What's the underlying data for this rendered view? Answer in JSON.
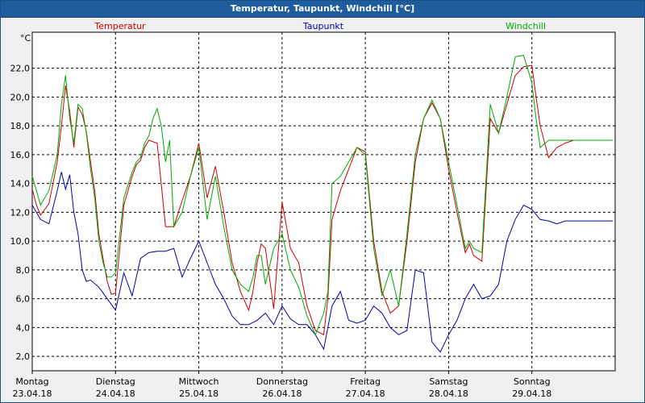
{
  "window": {
    "title": "Temperatur, Taupunkt, Windchill [°C]"
  },
  "colors": {
    "temperatur": "#cc0000",
    "taupunkt": "#0000aa",
    "windchill": "#00aa00",
    "background": "#ffffff"
  },
  "chart_data": {
    "type": "line",
    "title": "Temperatur, Taupunkt, Windchill [°C]",
    "ylabel": "°C",
    "ylim": [
      1.0,
      24.5
    ],
    "yticks": [
      "2,0",
      "4,0",
      "6,0",
      "8,0",
      "10,0",
      "12,0",
      "14,0",
      "16,0",
      "18,0",
      "20,0",
      "22,0"
    ],
    "x_days": [
      {
        "day": "Montag",
        "date": "23.04.18"
      },
      {
        "day": "Dienstag",
        "date": "24.04.18"
      },
      {
        "day": "Mittwoch",
        "date": "25.04.18"
      },
      {
        "day": "Donnerstag",
        "date": "26.04.18"
      },
      {
        "day": "Freitag",
        "date": "27.04.18"
      },
      {
        "day": "Samstag",
        "date": "28.04.18"
      },
      {
        "day": "Sonntag",
        "date": "29.04.18"
      }
    ],
    "grid": true,
    "legend": "top",
    "series": [
      {
        "name": "Temperatur",
        "x": [
          0,
          0.05,
          0.1,
          0.2,
          0.3,
          0.35,
          0.4,
          0.45,
          0.5,
          0.55,
          0.6,
          0.65,
          0.7,
          0.75,
          0.8,
          0.85,
          0.9,
          0.95,
          1.0,
          1.1,
          1.2,
          1.25,
          1.3,
          1.35,
          1.4,
          1.5,
          1.6,
          1.7,
          1.8,
          1.9,
          2.0,
          2.1,
          2.2,
          2.3,
          2.4,
          2.5,
          2.6,
          2.65,
          2.7,
          2.75,
          2.8,
          2.9,
          3.0,
          3.1,
          3.2,
          3.3,
          3.4,
          3.5,
          3.55,
          3.6,
          3.7,
          3.8,
          3.9,
          4.0,
          4.1,
          4.2,
          4.3,
          4.4,
          4.5,
          4.6,
          4.7,
          4.8,
          4.9,
          5.0,
          5.1,
          5.2,
          5.25,
          5.3,
          5.4,
          5.5,
          5.6,
          5.7,
          5.8,
          5.9,
          6.0,
          6.05,
          6.1,
          6.2,
          6.3,
          6.4,
          6.5,
          6.6,
          6.7,
          6.8,
          6.9,
          6.97
        ],
        "y": [
          13.6,
          12.5,
          11.8,
          12.6,
          15.5,
          18.0,
          20.8,
          19.0,
          16.5,
          19.3,
          18.8,
          17.6,
          15.5,
          13.5,
          10.5,
          8.8,
          7.2,
          6.3,
          6.4,
          12.5,
          14.5,
          15.3,
          15.6,
          16.5,
          17.0,
          16.8,
          11.0,
          11.0,
          12.8,
          14.5,
          16.8,
          13.0,
          15.2,
          12.0,
          8.5,
          6.5,
          5.2,
          6.5,
          8.5,
          9.8,
          9.5,
          5.3,
          12.7,
          9.5,
          8.5,
          5.5,
          3.8,
          3.5,
          6.0,
          11.5,
          13.5,
          15.0,
          16.5,
          16.2,
          10.0,
          6.5,
          5.0,
          5.5,
          10.0,
          15.5,
          18.5,
          19.6,
          18.5,
          15.0,
          12.0,
          9.2,
          9.8,
          9.0,
          8.6,
          18.5,
          17.5,
          19.5,
          21.5,
          22.1,
          22.2,
          20.0,
          18.0,
          15.8,
          16.5,
          16.8,
          17.0,
          17.0,
          17.0,
          17.0,
          17.0,
          17.0
        ]
      },
      {
        "name": "Taupunkt",
        "x": [
          0,
          0.1,
          0.2,
          0.3,
          0.35,
          0.4,
          0.45,
          0.5,
          0.55,
          0.6,
          0.65,
          0.7,
          0.8,
          0.9,
          1.0,
          1.1,
          1.2,
          1.3,
          1.4,
          1.5,
          1.6,
          1.7,
          1.8,
          1.9,
          2.0,
          2.1,
          2.2,
          2.3,
          2.4,
          2.5,
          2.6,
          2.7,
          2.8,
          2.9,
          3.0,
          3.1,
          3.2,
          3.3,
          3.4,
          3.5,
          3.6,
          3.7,
          3.8,
          3.9,
          4.0,
          4.1,
          4.2,
          4.3,
          4.4,
          4.5,
          4.6,
          4.7,
          4.8,
          4.9,
          5.0,
          5.1,
          5.2,
          5.3,
          5.4,
          5.5,
          5.6,
          5.7,
          5.8,
          5.9,
          6.0,
          6.1,
          6.2,
          6.3,
          6.4,
          6.5,
          6.6,
          6.7,
          6.8,
          6.9,
          6.97
        ],
        "y": [
          12.5,
          11.5,
          11.2,
          13.5,
          14.8,
          13.6,
          14.6,
          12.0,
          10.5,
          8.0,
          7.2,
          7.3,
          6.8,
          6.0,
          5.2,
          7.8,
          6.2,
          8.8,
          9.2,
          9.3,
          9.3,
          9.5,
          7.5,
          8.8,
          10.0,
          8.5,
          7.0,
          6.0,
          4.8,
          4.2,
          4.2,
          4.5,
          5.0,
          4.2,
          5.5,
          4.6,
          4.2,
          4.2,
          3.5,
          2.5,
          5.5,
          6.5,
          4.5,
          4.3,
          4.5,
          5.5,
          5.0,
          4.0,
          3.5,
          3.8,
          8.0,
          7.8,
          3.0,
          2.3,
          3.5,
          4.5,
          6.0,
          7.0,
          6.0,
          6.2,
          7.0,
          10.0,
          11.5,
          12.5,
          12.2,
          11.5,
          11.4,
          11.2,
          11.4,
          11.4,
          11.4,
          11.4,
          11.4,
          11.4,
          11.4
        ]
      },
      {
        "name": "Windchill",
        "x": [
          0,
          0.05,
          0.1,
          0.2,
          0.3,
          0.35,
          0.4,
          0.45,
          0.5,
          0.55,
          0.6,
          0.65,
          0.7,
          0.75,
          0.8,
          0.85,
          0.9,
          0.95,
          1.0,
          1.1,
          1.2,
          1.25,
          1.3,
          1.35,
          1.4,
          1.45,
          1.5,
          1.55,
          1.6,
          1.65,
          1.7,
          1.8,
          1.9,
          2.0,
          2.1,
          2.2,
          2.3,
          2.4,
          2.5,
          2.6,
          2.65,
          2.7,
          2.75,
          2.8,
          2.9,
          3.0,
          3.1,
          3.2,
          3.3,
          3.4,
          3.5,
          3.55,
          3.6,
          3.7,
          3.8,
          3.9,
          4.0,
          4.1,
          4.2,
          4.3,
          4.4,
          4.5,
          4.6,
          4.7,
          4.8,
          4.9,
          5.0,
          5.1,
          5.2,
          5.25,
          5.3,
          5.4,
          5.5,
          5.6,
          5.7,
          5.8,
          5.9,
          6.0,
          6.05,
          6.1,
          6.2,
          6.3,
          6.4,
          6.5,
          6.6,
          6.7,
          6.8,
          6.9,
          6.97
        ],
        "y": [
          14.5,
          13.5,
          12.5,
          13.5,
          16.0,
          19.5,
          21.5,
          18.5,
          16.8,
          19.5,
          19.2,
          17.5,
          15.0,
          13.0,
          10.0,
          8.5,
          7.5,
          7.5,
          7.8,
          13.0,
          14.8,
          15.5,
          15.8,
          16.8,
          17.3,
          18.5,
          19.2,
          18.0,
          15.5,
          17.0,
          11.0,
          12.0,
          14.5,
          16.5,
          11.5,
          14.5,
          11.0,
          8.0,
          7.0,
          6.5,
          7.5,
          9.0,
          9.0,
          7.0,
          9.5,
          10.5,
          8.0,
          6.8,
          4.8,
          3.5,
          5.0,
          6.5,
          14.0,
          14.5,
          15.5,
          16.5,
          16.0,
          9.5,
          6.2,
          8.0,
          5.5,
          10.5,
          16.0,
          18.5,
          19.8,
          18.5,
          15.5,
          12.5,
          9.5,
          10.0,
          9.5,
          9.2,
          19.5,
          17.5,
          20.0,
          22.8,
          22.9,
          21.0,
          18.5,
          16.5,
          17.0,
          17.0,
          17.0,
          17.0,
          17.0,
          17.0,
          17.0,
          17.0,
          17.0
        ]
      }
    ]
  }
}
